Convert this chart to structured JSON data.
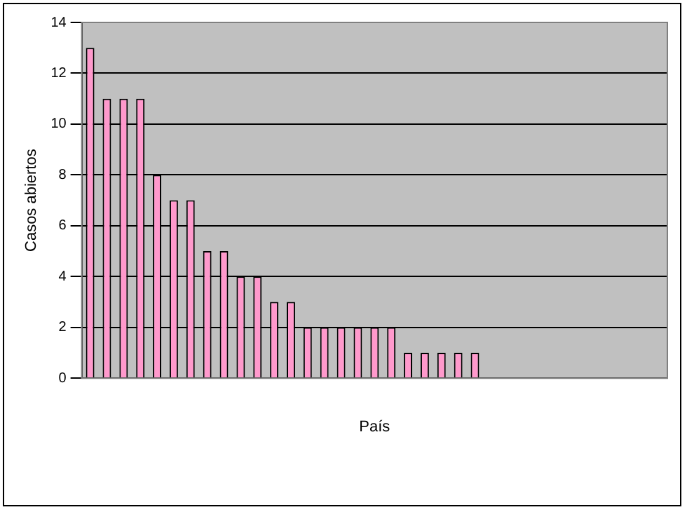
{
  "chart_data": {
    "type": "bar",
    "xlabel": "País",
    "ylabel": "Casos abiertos",
    "categories": [
      null,
      null,
      null,
      null,
      null,
      null,
      null,
      null,
      null,
      null,
      null,
      null,
      null,
      null,
      null,
      null,
      null,
      null,
      null,
      null,
      null,
      null,
      null,
      null,
      null,
      null,
      null,
      null,
      null,
      null,
      null,
      null,
      null,
      null,
      null
    ],
    "values": [
      13,
      11,
      11,
      11,
      8,
      7,
      7,
      5,
      5,
      4,
      4,
      3,
      3,
      2,
      2,
      2,
      2,
      2,
      2,
      1,
      1,
      1,
      1,
      1,
      0,
      0,
      0,
      0,
      0,
      0,
      0,
      0,
      0,
      0,
      0
    ],
    "color": "#ff99cc",
    "ylim": [
      0,
      14
    ],
    "yticks": [
      0,
      2,
      4,
      6,
      8,
      10,
      12,
      14
    ],
    "grid": "y",
    "legend": false
  }
}
